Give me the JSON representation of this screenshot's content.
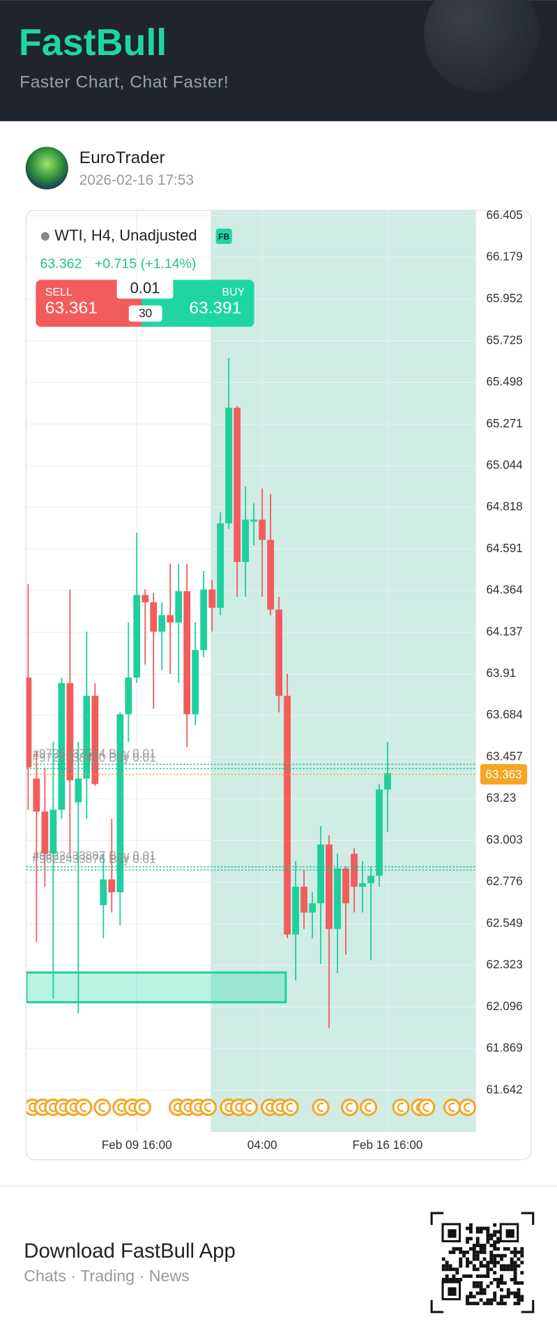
{
  "header": {
    "brand": "FastBull",
    "tagline": "Faster Chart, Chat Faster!"
  },
  "post": {
    "user": "EuroTrader",
    "timestamp": "2026-02-16 17:53"
  },
  "chart_data": {
    "type": "candlestick",
    "title": "WTI, H4, Unadjusted",
    "badge": "FB",
    "last": 63.362,
    "change": "+0.715 (+1.14%)",
    "trade": {
      "sell_label": "SELL",
      "sell_price": 63.361,
      "buy_label": "BUY",
      "buy_price": 63.391,
      "lots": 0.01,
      "spread": 30
    },
    "categories": [
      null,
      null,
      null,
      null,
      null,
      null,
      null,
      null,
      null,
      null,
      null,
      null,
      null,
      "Feb 09 16:00",
      null,
      null,
      null,
      null,
      null,
      null,
      null,
      null,
      null,
      null,
      null,
      null,
      null,
      null,
      "04:00",
      null,
      null,
      null,
      null,
      null,
      null,
      null,
      null,
      null,
      null,
      null,
      null,
      null,
      null,
      "Feb 16 16:00"
    ],
    "open": [
      63.89,
      63.34,
      63.16,
      62.93,
      63.17,
      63.86,
      63.21,
      63.34,
      63.79,
      62.65,
      62.79,
      62.72,
      63.69,
      63.89,
      64.34,
      64.3,
      64.14,
      64.23,
      64.19,
      64.36,
      63.69,
      64.04,
      64.37,
      64.27,
      64.73,
      65.36,
      64.52,
      64.74,
      64.75,
      64.64,
      64.26,
      63.79,
      62.49,
      62.75,
      62.61,
      62.66,
      62.98,
      62.52,
      62.85,
      62.93,
      62.75,
      62.77,
      62.81,
      63.28
    ],
    "high": [
      64.4,
      63.49,
      63.4,
      63.54,
      63.89,
      64.37,
      63.54,
      64.14,
      63.86,
      62.93,
      63.12,
      63.7,
      64.19,
      64.68,
      64.37,
      64.35,
      64.3,
      64.51,
      64.51,
      64.51,
      64.19,
      64.47,
      64.42,
      64.79,
      65.63,
      65.37,
      64.93,
      64.84,
      64.92,
      64.89,
      64.33,
      63.91,
      62.89,
      62.84,
      62.72,
      63.08,
      63.03,
      62.93,
      62.86,
      62.96,
      62.89,
      62.86,
      63.31,
      63.54
    ],
    "low": [
      63.17,
      62.45,
      62.75,
      62.14,
      63.12,
      62.93,
      62.06,
      63.12,
      63.3,
      62.47,
      62.61,
      62.54,
      63.54,
      63.86,
      63.96,
      63.72,
      63.93,
      63.91,
      63.86,
      63.51,
      63.63,
      64.0,
      64.14,
      64.23,
      64.7,
      64.33,
      64.33,
      64.61,
      64.33,
      64.23,
      63.7,
      62.47,
      62.24,
      62.52,
      62.47,
      62.33,
      61.98,
      62.28,
      62.38,
      62.61,
      62.61,
      62.35,
      62.75,
      63.05
    ],
    "close": [
      63.4,
      63.16,
      62.93,
      63.17,
      63.86,
      63.33,
      63.34,
      63.79,
      63.31,
      62.79,
      62.72,
      63.69,
      63.89,
      64.34,
      64.3,
      64.14,
      64.23,
      64.19,
      64.36,
      63.69,
      64.04,
      64.37,
      64.27,
      64.73,
      65.36,
      64.52,
      64.75,
      64.75,
      64.64,
      64.26,
      63.79,
      62.49,
      62.75,
      62.61,
      62.66,
      62.98,
      62.52,
      62.85,
      62.66,
      62.75,
      62.77,
      62.81,
      63.28,
      63.37
    ],
    "up_color": "#1fcf9c",
    "down_color": "#f25c5c",
    "ylim": [
      61.414,
      66.433
    ],
    "yticks": [
      66.405,
      66.179,
      65.952,
      65.725,
      65.498,
      65.271,
      65.044,
      64.818,
      64.591,
      64.364,
      64.137,
      63.91,
      63.684,
      63.457,
      63.23,
      63.003,
      62.776,
      62.549,
      62.323,
      62.096,
      61.869,
      61.642
    ],
    "grid": true,
    "current_price": 63.363,
    "current_color": "#f5a623",
    "order_lines": [
      {
        "value": 63.417,
        "label": "#9725337504 Buy 0.01"
      },
      {
        "value": 63.394,
        "label": "#9725338420 Buy 0.01"
      },
      {
        "value": 62.859,
        "label": "#9622433887 Buy 0.01"
      },
      {
        "value": 62.841,
        "label": "#9622433876 Buy 0.01"
      }
    ],
    "zone": {
      "top": 62.283,
      "bottom": 62.121
    }
  },
  "footer": {
    "title": "Download FastBull App",
    "subtitle": "Chats · Trading · News"
  }
}
